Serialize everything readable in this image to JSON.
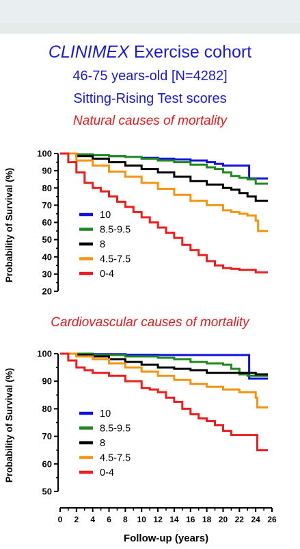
{
  "header": {
    "title_italic": "CLINIMEX",
    "title_rest": " Exercise cohort",
    "subtitle1": "46-75 years-old [N=4282]",
    "subtitle2": "Sitting-Rising Test scores"
  },
  "colors": {
    "title": "#1a1ad6",
    "subtitle_red": "#e8181c",
    "series_10": "#1010e6",
    "series_8_5_9_5": "#1d8a1d",
    "series_8": "#000000",
    "series_4_5_7_5": "#f7930f",
    "series_0_4": "#ee1c1c"
  },
  "chart_data": [
    {
      "type": "line",
      "title": "Natural causes of mortality",
      "ylabel": "Probability of Survival (%)",
      "xlabel": "",
      "xlim": [
        0,
        26
      ],
      "ylim": [
        20,
        100
      ],
      "yticks": [
        20,
        30,
        40,
        50,
        60,
        70,
        80,
        90,
        100
      ],
      "grid": false,
      "legend_position": "left",
      "series": [
        {
          "name": "10",
          "color": "#1010e6",
          "x": [
            0,
            2,
            4,
            6,
            8,
            10,
            12,
            14,
            16,
            18,
            19,
            20,
            22,
            23,
            23.2,
            25.5
          ],
          "y": [
            100,
            99.5,
            99,
            98.5,
            98,
            97.5,
            97,
            96.5,
            96,
            95,
            94,
            93,
            93,
            93,
            85.5,
            85.5
          ]
        },
        {
          "name": "8.5-9.5",
          "color": "#1d8a1d",
          "x": [
            0,
            2,
            4,
            6,
            8,
            10,
            12,
            14,
            16,
            18,
            19,
            20,
            21,
            22,
            23,
            24,
            25.5
          ],
          "y": [
            100,
            99.5,
            99,
            98.5,
            98,
            97,
            96,
            95,
            93.5,
            92,
            91,
            89,
            87,
            86,
            85,
            82.5,
            82.5
          ]
        },
        {
          "name": "8",
          "color": "#000000",
          "x": [
            0,
            2,
            4,
            6,
            8,
            10,
            12,
            14,
            16,
            18,
            20,
            21,
            22,
            23,
            24,
            25.5
          ],
          "y": [
            100,
            98.5,
            97,
            95,
            93,
            91,
            89,
            86.5,
            84,
            82,
            80,
            79,
            77,
            75,
            72.5,
            72.5
          ]
        },
        {
          "name": "4.5-7.5",
          "color": "#f7930f",
          "x": [
            0,
            2,
            4,
            6,
            8,
            10,
            12,
            14,
            16,
            18,
            20,
            21,
            22,
            23,
            24,
            24.3,
            25.5
          ],
          "y": [
            100,
            96,
            93,
            89.5,
            86.5,
            83,
            79.5,
            76,
            72.5,
            70,
            67,
            66,
            65,
            64,
            61,
            55,
            55
          ]
        },
        {
          "name": "0-4",
          "color": "#ee1c1c",
          "x": [
            0,
            1,
            2,
            3,
            4,
            5,
            6,
            7,
            8,
            9,
            10,
            11,
            12,
            13,
            14,
            15,
            16,
            17,
            18,
            19,
            20,
            21,
            22,
            23,
            24,
            25.5
          ],
          "y": [
            100,
            95,
            89,
            83,
            80,
            78,
            75,
            72,
            69,
            66,
            63,
            60,
            57,
            54,
            51,
            47,
            44,
            41,
            37.5,
            35,
            33.5,
            33,
            32.5,
            32.5,
            31,
            31
          ]
        }
      ]
    },
    {
      "type": "line",
      "title": "Cardiovascular causes of mortality",
      "ylabel": "Probability of Survival (%)",
      "xlabel": "Follow-up (years)",
      "xlim": [
        0,
        26
      ],
      "ylim": [
        50,
        100
      ],
      "yticks": [
        50,
        60,
        70,
        80,
        90,
        100
      ],
      "xticks": [
        0,
        2,
        4,
        6,
        8,
        10,
        12,
        14,
        16,
        18,
        20,
        22,
        24,
        26
      ],
      "grid": false,
      "legend_position": "left",
      "series": [
        {
          "name": "10",
          "color": "#1010e6",
          "x": [
            0,
            4,
            8,
            12,
            16,
            20,
            23,
            23.2,
            25.5
          ],
          "y": [
            100,
            99.8,
            99.6,
            99.5,
            99.5,
            99.5,
            99.5,
            91,
            91
          ]
        },
        {
          "name": "8.5-9.5",
          "color": "#1d8a1d",
          "x": [
            0,
            4,
            8,
            12,
            14,
            16,
            18,
            20,
            21,
            22,
            23,
            24,
            25.5
          ],
          "y": [
            100,
            99.5,
            99,
            98.5,
            98,
            97,
            96.5,
            96,
            94.5,
            92.5,
            92,
            92,
            92
          ]
        },
        {
          "name": "8",
          "color": "#000000",
          "x": [
            0,
            2,
            4,
            6,
            8,
            10,
            12,
            14,
            16,
            18,
            20,
            22,
            24,
            25.5
          ],
          "y": [
            100,
            99.5,
            99,
            98,
            97,
            96,
            95,
            94.5,
            94,
            93,
            93,
            93,
            92.5,
            92.5
          ]
        },
        {
          "name": "4.5-7.5",
          "color": "#f7930f",
          "x": [
            0,
            2,
            4,
            6,
            8,
            10,
            12,
            14,
            16,
            18,
            20,
            22,
            23,
            24,
            24.2,
            25.5
          ],
          "y": [
            100,
            99,
            98,
            96.5,
            95,
            93.5,
            92,
            90.5,
            89,
            88,
            87,
            86,
            86,
            84,
            80.5,
            80.5
          ]
        },
        {
          "name": "0-4",
          "color": "#ee1c1c",
          "x": [
            0,
            1,
            2,
            3,
            4,
            6,
            8,
            10,
            11,
            12,
            13,
            14,
            15,
            16,
            17,
            18,
            19,
            20,
            21,
            22,
            23,
            24,
            24.2,
            25.5
          ],
          "y": [
            100,
            97.5,
            95,
            94,
            93,
            92,
            90,
            87.5,
            87,
            86,
            84,
            82.5,
            80,
            78,
            76.5,
            75.5,
            74,
            72,
            70.5,
            70.5,
            70.5,
            70.5,
            65,
            65
          ]
        }
      ]
    }
  ]
}
